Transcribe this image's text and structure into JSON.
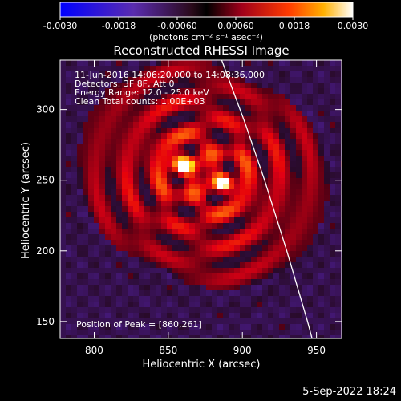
{
  "chart_data": {
    "type": "heatmap",
    "title": "Reconstructed RHESSI Image",
    "xlabel": "Heliocentric X (arcsec)",
    "ylabel": "Heliocentric Y (arcsec)",
    "xlim": [
      777,
      967
    ],
    "ylim": [
      138,
      335
    ],
    "x_ticks": [
      800,
      850,
      900,
      950
    ],
    "y_ticks": [
      150,
      200,
      250,
      300
    ],
    "colorbar": {
      "ticks": [
        -0.003,
        -0.0018,
        -0.0006,
        0.0006,
        0.0018,
        0.003
      ],
      "tick_labels": [
        "-0.0030",
        "-0.0018",
        "-0.00060",
        "0.00060",
        "0.0018",
        "0.0030"
      ],
      "unit_label": "(photons cm⁻² s⁻¹ asec⁻²)",
      "range": [
        -0.003,
        0.003
      ]
    },
    "annotations": {
      "time": "11-Jun-2016 14:06:20.000 to 14:08:36.000",
      "detectors": "Detectors: 3F 8F, Att 0",
      "energy": "Energy Range: 12.0 - 25.0 keV",
      "clean": "Clean    Total counts: 1.00E+03",
      "peak": "Position of Peak = [860,261]"
    },
    "peaks": [
      {
        "x": 860,
        "y": 261
      },
      {
        "x": 887,
        "y": 248
      }
    ],
    "limb_curve": [
      [
        886,
        335
      ],
      [
        902,
        290
      ],
      [
        915,
        250
      ],
      [
        930,
        200
      ],
      [
        944,
        150
      ],
      [
        947,
        138
      ]
    ]
  },
  "footer": {
    "date": "5-Sep-2022 18:24"
  }
}
